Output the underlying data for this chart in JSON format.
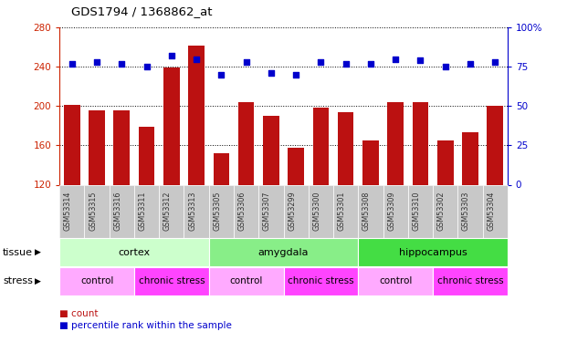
{
  "title": "GDS1794 / 1368862_at",
  "samples": [
    "GSM53314",
    "GSM53315",
    "GSM53316",
    "GSM53311",
    "GSM53312",
    "GSM53313",
    "GSM53305",
    "GSM53306",
    "GSM53307",
    "GSM53299",
    "GSM53300",
    "GSM53301",
    "GSM53308",
    "GSM53309",
    "GSM53310",
    "GSM53302",
    "GSM53303",
    "GSM53304"
  ],
  "counts": [
    201,
    196,
    196,
    179,
    239,
    261,
    152,
    204,
    190,
    158,
    198,
    194,
    165,
    204,
    204,
    165,
    173,
    200
  ],
  "percentiles": [
    77,
    78,
    77,
    75,
    82,
    80,
    70,
    78,
    71,
    70,
    78,
    77,
    77,
    80,
    79,
    75,
    77,
    78
  ],
  "bar_color": "#BB1111",
  "dot_color": "#0000CC",
  "bg_color": "#FFFFFF",
  "ylim_left": [
    120,
    280
  ],
  "ylim_right": [
    0,
    100
  ],
  "yticks_left": [
    120,
    160,
    200,
    240,
    280
  ],
  "yticks_right": [
    0,
    25,
    50,
    75,
    100
  ],
  "tissue_groups": [
    {
      "label": "cortex",
      "start": 0,
      "end": 5,
      "color": "#CCFFCC"
    },
    {
      "label": "amygdala",
      "start": 6,
      "end": 11,
      "color": "#88EE88"
    },
    {
      "label": "hippocampus",
      "start": 12,
      "end": 17,
      "color": "#44DD44"
    }
  ],
  "stress_groups": [
    {
      "label": "control",
      "start": 0,
      "end": 2,
      "color": "#FFAAFF"
    },
    {
      "label": "chronic stress",
      "start": 3,
      "end": 5,
      "color": "#FF44FF"
    },
    {
      "label": "control",
      "start": 6,
      "end": 8,
      "color": "#FFAAFF"
    },
    {
      "label": "chronic stress",
      "start": 9,
      "end": 11,
      "color": "#FF44FF"
    },
    {
      "label": "control",
      "start": 12,
      "end": 14,
      "color": "#FFAAFF"
    },
    {
      "label": "chronic stress",
      "start": 15,
      "end": 17,
      "color": "#FF44FF"
    }
  ],
  "tissue_label": "tissue",
  "stress_label": "stress",
  "legend_count_label": "count",
  "legend_pct_label": "percentile rank within the sample",
  "left_axis_color": "#CC2200",
  "right_axis_color": "#0000CC",
  "xtick_bg_color": "#C8C8C8"
}
